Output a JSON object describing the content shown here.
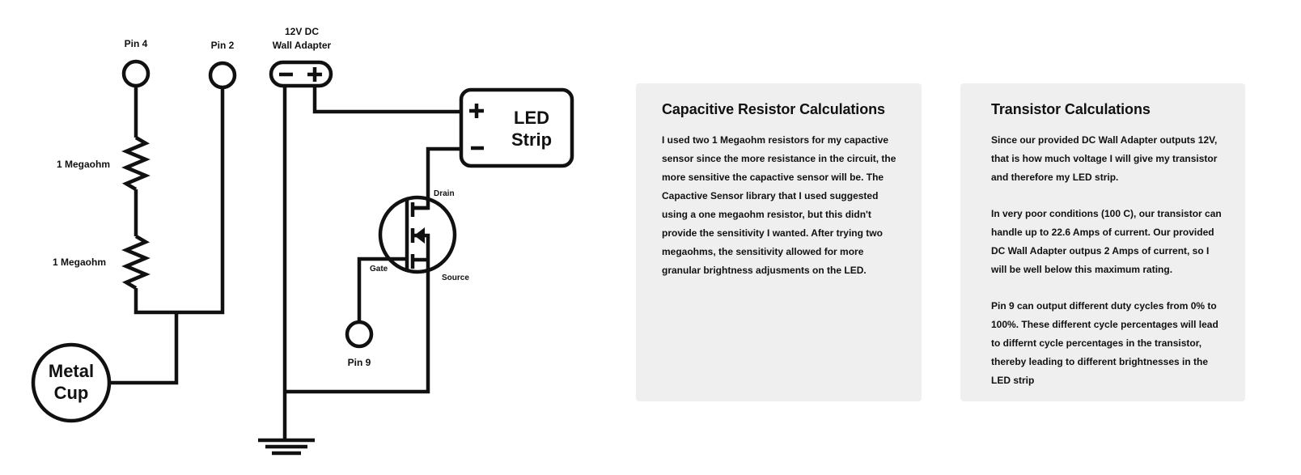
{
  "schematic": {
    "labels": {
      "pin4": "Pin 4",
      "pin2": "Pin 2",
      "adapter_line1": "12V DC",
      "adapter_line2": "Wall Adapter",
      "resistor1": "1 Megaohm",
      "resistor2": "1 Megaohm",
      "cup_line1": "Metal",
      "cup_line2": "Cup",
      "led_line1": "LED",
      "led_line2": "Strip",
      "drain": "Drain",
      "gate": "Gate",
      "source": "Source",
      "pin9": "Pin 9"
    },
    "stroke_color": "#111111"
  },
  "panels": {
    "capacitive": {
      "title": "Capacitive Resistor Calculations",
      "paragraphs": [
        "I used two 1 Megaohm resistors for my capactive sensor since the more resistance in the circuit, the more sensitive the capactive sensor will be. The Capactive Sensor library that I used suggested using a one megaohm resistor, but this didn't provide the sensitivity I wanted. After trying two megaohms, the sensitivity allowed for more granular brightness adjusments on the LED."
      ]
    },
    "transistor": {
      "title": "Transistor Calculations",
      "paragraphs": [
        "Since our provided DC Wall Adapter outputs 12V, that is how much voltage I will give my transistor and therefore  my LED strip.",
        "In very poor conditions (100 C), our transistor can handle up to 22.6 Amps of current. Our provided DC Wall Adapter outpus 2 Amps of current, so I will be well below this maximum rating.",
        "Pin 9 can output different duty cycles from 0% to 100%. These different cycle percentages will lead to differnt cycle percentages in the transistor, thereby leading to different brightnesses in the LED strip"
      ]
    },
    "background_color": "#efefef"
  }
}
